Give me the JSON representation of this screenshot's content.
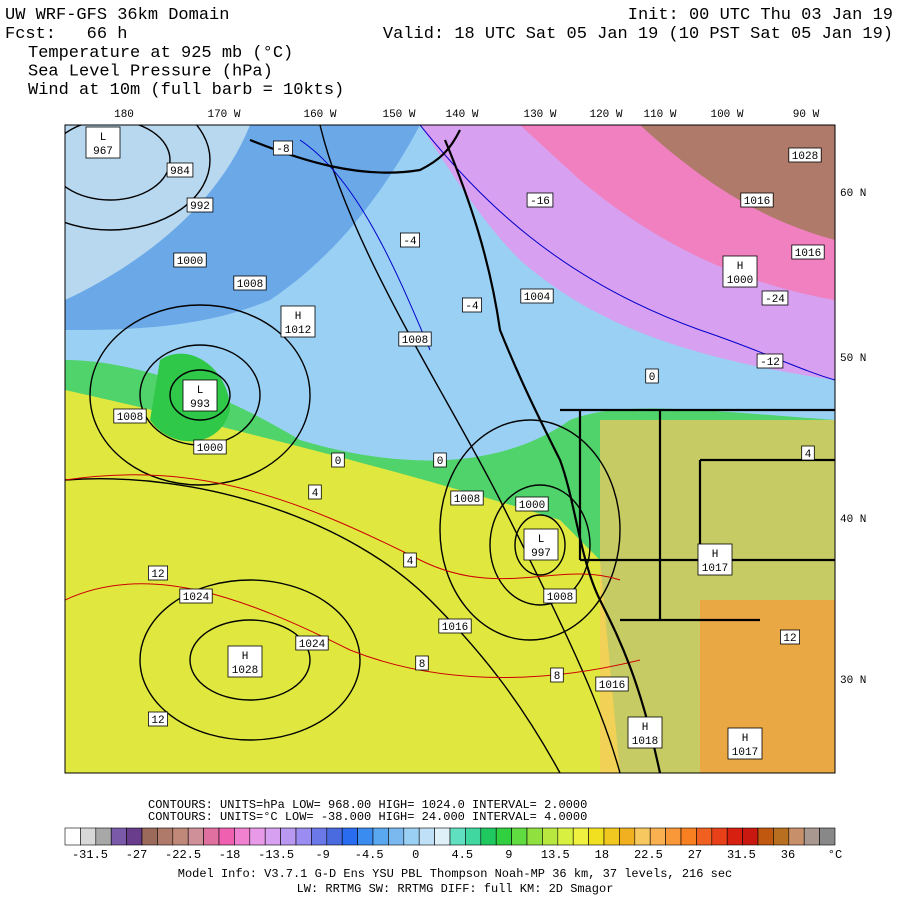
{
  "header": {
    "title": "UW WRF-GFS 36km Domain",
    "forecast": "Fcst:   66 h",
    "init": "Init: 00 UTC Thu 03 Jan 19",
    "valid": "Valid: 18 UTC Sat 05 Jan 19 (10 PST Sat 05 Jan 19)"
  },
  "fields": [
    "Temperature at 925 mb (°C)",
    "Sea Level Pressure (hPa)",
    "Wind at 10m (full barb = 10kts)"
  ],
  "lon_labels": [
    "180",
    "170 W",
    "160 W",
    "150 W",
    "140 W",
    "130 W",
    "120 W",
    "110 W",
    "100 W",
    "90 W"
  ],
  "lat_labels": [
    "60 N",
    "50 N",
    "40 N",
    "30 N"
  ],
  "map_labels": [
    "984",
    "992",
    "1000",
    "1008",
    "1008",
    "1008",
    "1000",
    "1008",
    "1000",
    "1008",
    "1016",
    "1024",
    "1024",
    "1016",
    "1004",
    "1016",
    "1016",
    "1028",
    "-16",
    "-4",
    "-4",
    "0",
    "0",
    "4",
    "4",
    "8",
    "8",
    "12",
    "12",
    "-24",
    "-12",
    "0",
    "4",
    "12",
    "-8"
  ],
  "pressure_centers": [
    {
      "letter": "L",
      "value": "967"
    },
    {
      "letter": "L",
      "value": "993"
    },
    {
      "letter": "H",
      "value": "1012"
    },
    {
      "letter": "H",
      "value": "1028"
    },
    {
      "letter": "L",
      "value": "997"
    },
    {
      "letter": "H",
      "value": "1018"
    },
    {
      "letter": "H",
      "value": "1000"
    },
    {
      "letter": "H",
      "value": "1017"
    },
    {
      "letter": "H",
      "value": "1017"
    }
  ],
  "contour_info": [
    "CONTOURS:  UNITS=hPa  LOW=   968.00      HIGH=  1024.0      INTERVAL=    2.0000",
    "CONTOURS:  UNITS=°C  LOW=  -38.000     HIGH=  24.000      INTERVAL=    4.0000"
  ],
  "colorbar": {
    "labels": [
      "-31.5",
      "-27",
      "-22.5",
      "-18",
      "-13.5",
      "-9",
      "-4.5",
      "0",
      "4.5",
      "9",
      "13.5",
      "18",
      "22.5",
      "27",
      "31.5",
      "36"
    ],
    "unit": "°C",
    "colors": [
      "#ffffff",
      "#d8d8d8",
      "#a8a8a8",
      "#7a5aa8",
      "#6a3c8c",
      "#9c6a5a",
      "#b07a6a",
      "#c08878",
      "#d0909a",
      "#e070a0",
      "#f060b0",
      "#f080d0",
      "#e89ae8",
      "#d8a0f0",
      "#b898f0",
      "#9a8cf0",
      "#6a78e8",
      "#4a6ae0",
      "#2a6cf0",
      "#3a8cf0",
      "#5aa8f0",
      "#7ab8f0",
      "#9ad0f4",
      "#c0e0f8",
      "#e0f0f8",
      "#60e0c0",
      "#40d8a0",
      "#20c860",
      "#30d040",
      "#60dc40",
      "#90e040",
      "#b8e840",
      "#d8f040",
      "#f0f040",
      "#f0e020",
      "#f0c820",
      "#f0b020",
      "#f8c860",
      "#f8b050",
      "#f89838",
      "#f88020",
      "#f06020",
      "#e84018",
      "#d82010",
      "#c81810",
      "#c05810",
      "#b87020",
      "#c8906a",
      "#a89890",
      "#888888"
    ]
  },
  "model_info": [
    "Model Info: V3.7.1    G-D Ens YSU PBL  Thompson    Noah-MP  36 km,   37 levels,  216 sec",
    "LW: RRTMG SW: RRTMG    DIFF: full    KM: 2D Smagor"
  ]
}
